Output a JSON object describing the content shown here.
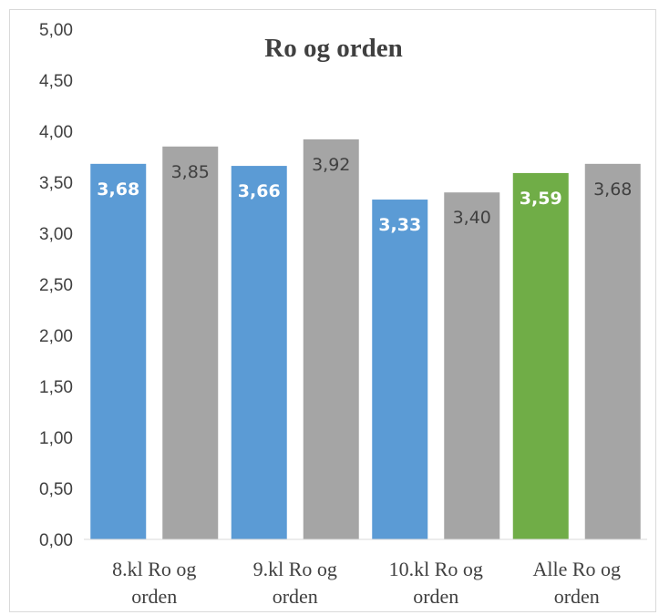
{
  "chart_data": {
    "type": "bar",
    "title": "Ro og orden",
    "categories": [
      [
        "8.kl Ro og",
        "orden"
      ],
      [
        "9.kl Ro og",
        "orden"
      ],
      [
        "10.kl Ro og",
        "orden"
      ],
      [
        "Alle Ro og",
        "orden"
      ]
    ],
    "series": [
      {
        "values": [
          3.68,
          3.66,
          3.33,
          3.59
        ],
        "value_labels": [
          "3,68",
          "3,66",
          "3,33",
          "3,59"
        ],
        "colors": [
          "#5b9bd5",
          "#5b9bd5",
          "#5b9bd5",
          "#70ad47"
        ]
      },
      {
        "values": [
          3.85,
          3.92,
          3.4,
          3.68
        ],
        "value_labels": [
          "3,85",
          "3,92",
          "3,40",
          "3,68"
        ],
        "colors": [
          "#a5a5a5",
          "#a5a5a5",
          "#a5a5a5",
          "#a5a5a5"
        ]
      }
    ],
    "ylim": [
      0,
      5
    ],
    "yticks": [
      0,
      0.5,
      1,
      1.5,
      2,
      2.5,
      3,
      3.5,
      4,
      4.5,
      5
    ],
    "ytick_labels": [
      "0,00",
      "0,50",
      "1,00",
      "1,50",
      "2,00",
      "2,50",
      "3,00",
      "3,50",
      "4,00",
      "4,50",
      "5,00"
    ],
    "grid": false,
    "legend": "none"
  }
}
